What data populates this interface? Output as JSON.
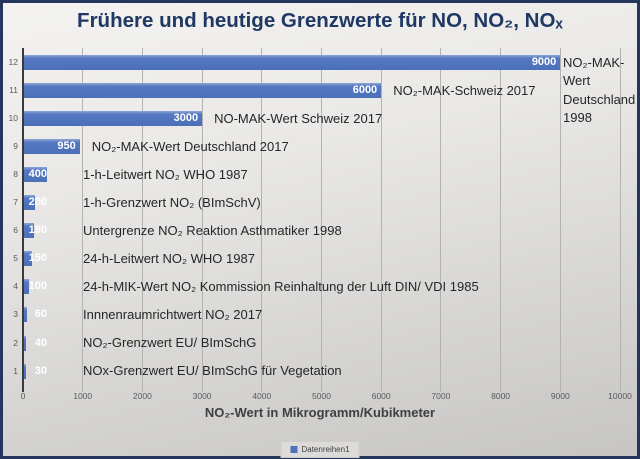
{
  "title": "Frühere und heutige Grenzwerte für NO, NO₂, NOₓ",
  "chart_data": {
    "type": "bar",
    "orientation": "horizontal",
    "title": "Frühere und heutige Grenzwerte für NO, NO₂, NOₓ",
    "xlabel": "NO₂-Wert in Mikrogramm/Kubikmeter",
    "ylabel": "",
    "xlim": [
      0,
      10000
    ],
    "x_ticks": [
      0,
      1000,
      2000,
      3000,
      4000,
      5000,
      6000,
      7000,
      8000,
      9000,
      10000
    ],
    "grid": true,
    "bar_color": "#4d73bc",
    "value_label_color": "#ffffff",
    "legend": {
      "position": "bottom",
      "entries": [
        {
          "label": "Datenreihen1",
          "color": "#4d73bc"
        }
      ]
    },
    "rows": [
      {
        "index": 12,
        "value": 9000,
        "label": "NO₂-MAK-Wert Deutschland 1998"
      },
      {
        "index": 11,
        "value": 6000,
        "label": "NO₂-MAK-Schweiz 2017"
      },
      {
        "index": 10,
        "value": 3000,
        "label": "NO-MAK-Wert Schweiz 2017"
      },
      {
        "index": 9,
        "value": 950,
        "label": "NO₂-MAK-Wert Deutschland 2017"
      },
      {
        "index": 8,
        "value": 400,
        "label": "1-h-Leitwert NO₂ WHO 1987"
      },
      {
        "index": 7,
        "value": 200,
        "label": "1-h-Grenzwert NO₂ (BImSchV)"
      },
      {
        "index": 6,
        "value": 190,
        "label": "Untergrenze NO₂ Reaktion Asthmatiker 1998"
      },
      {
        "index": 5,
        "value": 150,
        "label": "24-h-Leitwert NO₂ WHO 1987"
      },
      {
        "index": 4,
        "value": 100,
        "label": "24-h-MIK-Wert NO₂ Kommission Reinhaltung der Luft DIN/ VDI 1985"
      },
      {
        "index": 3,
        "value": 60,
        "label": "Innnenraumrichtwert NO₂ 2017"
      },
      {
        "index": 2,
        "value": 40,
        "label": "NO₂-Grenzwert EU/ BImSchG"
      },
      {
        "index": 1,
        "value": 30,
        "label": "NOx-Grenzwert EU/ BImSchG für Vegetation"
      }
    ]
  }
}
